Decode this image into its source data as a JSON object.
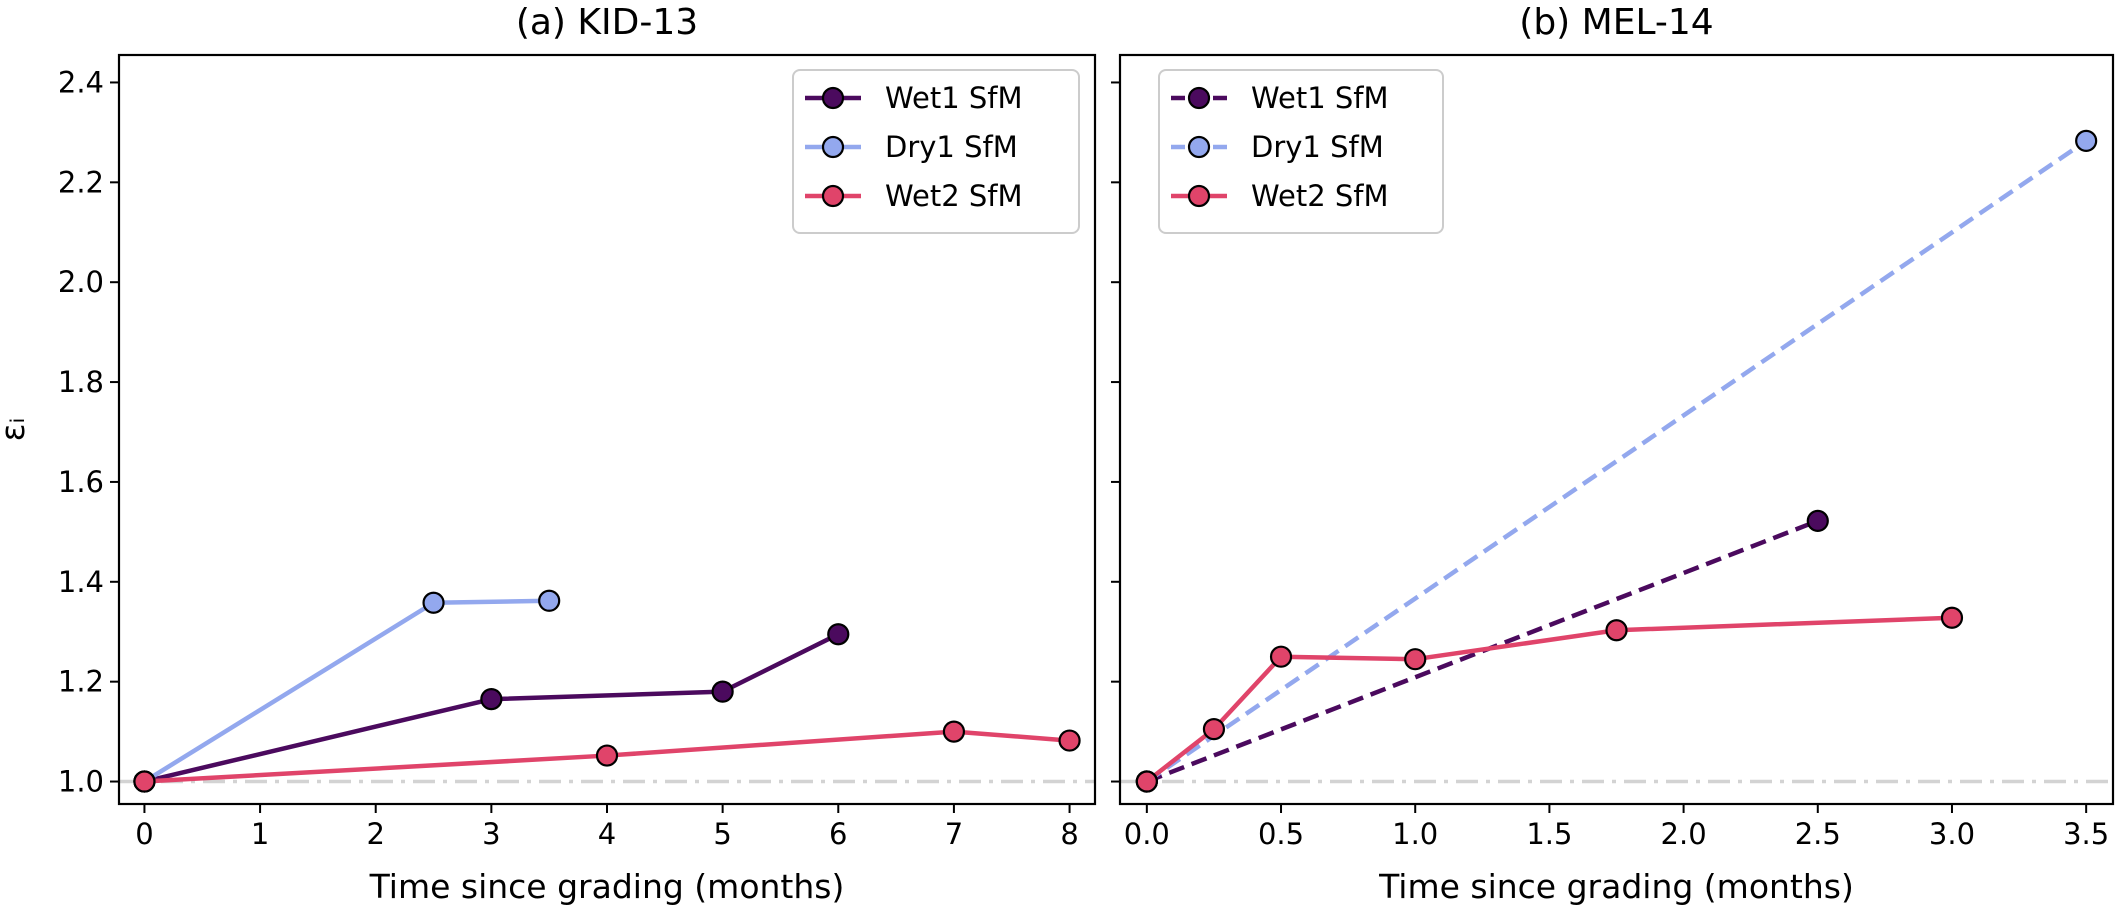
{
  "chart_data": [
    {
      "type": "line",
      "title": "(a) KID-13",
      "xlabel": "Time since grading (months)",
      "ylabel": "εᵢ",
      "xlim": [
        -0.22,
        8.22
      ],
      "ylim": [
        0.955,
        2.455
      ],
      "xticks": [
        0,
        1,
        2,
        3,
        4,
        5,
        6,
        7,
        8
      ],
      "xtick_labels": [
        "0",
        "1",
        "2",
        "3",
        "4",
        "5",
        "6",
        "7",
        "8"
      ],
      "yticks": [
        1.0,
        1.2,
        1.4,
        1.6,
        1.8,
        2.0,
        2.2,
        2.4
      ],
      "ytick_labels": [
        "1.0",
        "1.2",
        "1.4",
        "1.6",
        "1.8",
        "2.0",
        "2.2",
        "2.4"
      ],
      "reference_line": {
        "y": 1.0,
        "color": "#d3d3d3",
        "style": "dashdot"
      },
      "legend": "top-right",
      "series": [
        {
          "name": "Wet1 SfM",
          "color": "#4b0a5e",
          "dash": "solid",
          "x": [
            0,
            3,
            5,
            6
          ],
          "y": [
            1.0,
            1.165,
            1.18,
            1.295
          ]
        },
        {
          "name": "Dry1 SfM",
          "color": "#93a8ee",
          "dash": "solid",
          "x": [
            0,
            2.5,
            3.5
          ],
          "y": [
            1.0,
            1.358,
            1.362
          ]
        },
        {
          "name": "Wet2 SfM",
          "color": "#e0446a",
          "dash": "solid",
          "x": [
            0,
            4,
            7,
            8
          ],
          "y": [
            1.0,
            1.052,
            1.1,
            1.082
          ]
        }
      ]
    },
    {
      "type": "line",
      "title": "(b) MEL-14",
      "xlabel": "Time since grading (months)",
      "ylabel": "",
      "xlim": [
        -0.1,
        3.6
      ],
      "ylim": [
        0.955,
        2.455
      ],
      "xticks": [
        0.0,
        0.5,
        1.0,
        1.5,
        2.0,
        2.5,
        3.0,
        3.5
      ],
      "xtick_labels": [
        "0.0",
        "0.5",
        "1.0",
        "1.5",
        "2.0",
        "2.5",
        "3.0",
        "3.5"
      ],
      "yticks": [
        1.0,
        1.2,
        1.4,
        1.6,
        1.8,
        2.0,
        2.2,
        2.4
      ],
      "ytick_labels": [],
      "reference_line": {
        "y": 1.0,
        "color": "#d3d3d3",
        "style": "dashdot"
      },
      "legend": "top-left",
      "series": [
        {
          "name": "Wet1 SfM",
          "color": "#4b0a5e",
          "dash": "dashed",
          "x": [
            0,
            2.5
          ],
          "y": [
            1.0,
            1.522
          ]
        },
        {
          "name": "Dry1 SfM",
          "color": "#93a8ee",
          "dash": "dashed",
          "x": [
            0,
            3.5
          ],
          "y": [
            1.0,
            2.283
          ]
        },
        {
          "name": "Wet2 SfM",
          "color": "#e0446a",
          "dash": "solid",
          "x": [
            0,
            0.25,
            0.5,
            1.0,
            1.75,
            3.0
          ],
          "y": [
            1.0,
            1.105,
            1.25,
            1.245,
            1.303,
            1.328
          ]
        }
      ]
    }
  ]
}
